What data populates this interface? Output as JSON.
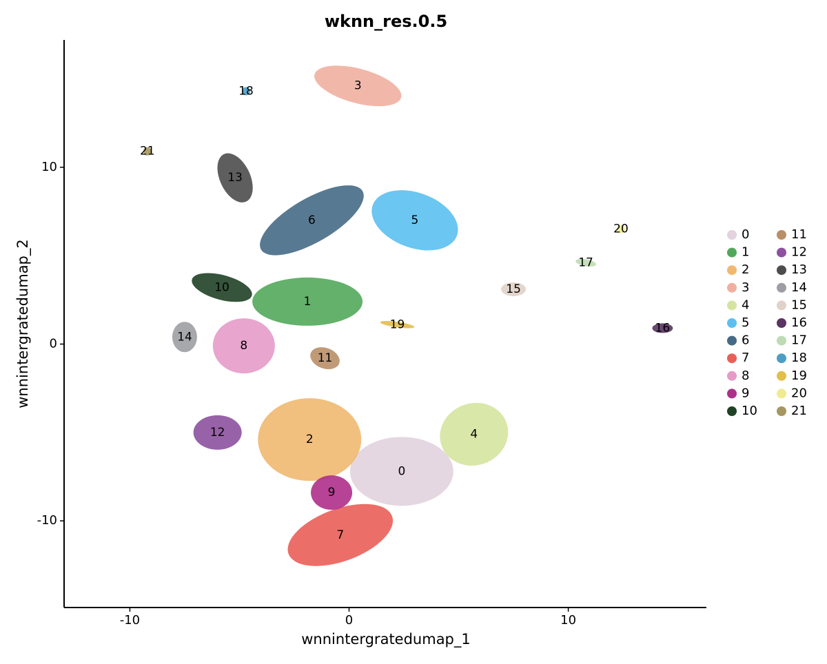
{
  "chart_data": {
    "type": "scatter",
    "title": "wknn_res.0.5",
    "x_label": "wnnintergratedumap_1",
    "y_label": "wnnintergratedumap_2",
    "xlim": [
      -13,
      16.3
    ],
    "ylim": [
      -14.9,
      17.2
    ],
    "xticks": [
      -10,
      0,
      10
    ],
    "yticks": [
      -10,
      0,
      10
    ],
    "legend": "right",
    "series": [
      {
        "name": "0",
        "color": "#e2d3de",
        "x": [
          2.4
        ],
        "y": [
          -7.2
        ]
      },
      {
        "name": "1",
        "color": "#52a85a",
        "x": [
          -1.9
        ],
        "y": [
          2.4
        ]
      },
      {
        "name": "2",
        "color": "#f0b870",
        "x": [
          -1.8
        ],
        "y": [
          -5.4
        ]
      },
      {
        "name": "3",
        "color": "#f0b0a0",
        "x": [
          0.4
        ],
        "y": [
          14.6
        ]
      },
      {
        "name": "4",
        "color": "#d5e4a0",
        "x": [
          5.7
        ],
        "y": [
          -5.1
        ]
      },
      {
        "name": "5",
        "color": "#5bc0f0",
        "x": [
          3.0
        ],
        "y": [
          7.0
        ]
      },
      {
        "name": "6",
        "color": "#466a86",
        "x": [
          -1.7
        ],
        "y": [
          7.0
        ]
      },
      {
        "name": "7",
        "color": "#e95f58",
        "x": [
          -0.4
        ],
        "y": [
          -10.8
        ]
      },
      {
        "name": "8",
        "color": "#e59bc8",
        "x": [
          -4.8
        ],
        "y": [
          -0.1
        ]
      },
      {
        "name": "9",
        "color": "#ae2f89",
        "x": [
          -0.8
        ],
        "y": [
          -8.4
        ]
      },
      {
        "name": "10",
        "color": "#1f4126",
        "x": [
          -5.8
        ],
        "y": [
          3.2
        ]
      },
      {
        "name": "11",
        "color": "#b98f68",
        "x": [
          -1.1
        ],
        "y": [
          -0.8
        ]
      },
      {
        "name": "12",
        "color": "#8d519f",
        "x": [
          -6.0
        ],
        "y": [
          -5.0
        ]
      },
      {
        "name": "13",
        "color": "#4d4d4d",
        "x": [
          -5.2
        ],
        "y": [
          9.4
        ]
      },
      {
        "name": "14",
        "color": "#9d9ea3",
        "x": [
          -7.5
        ],
        "y": [
          0.4
        ]
      },
      {
        "name": "15",
        "color": "#e0d2c8",
        "x": [
          7.5
        ],
        "y": [
          3.1
        ]
      },
      {
        "name": "16",
        "color": "#5a3462",
        "x": [
          14.3
        ],
        "y": [
          0.9
        ]
      },
      {
        "name": "17",
        "color": "#bedbb4",
        "x": [
          10.8
        ],
        "y": [
          4.6
        ]
      },
      {
        "name": "18",
        "color": "#4c9ec4",
        "x": [
          -4.7
        ],
        "y": [
          14.3
        ]
      },
      {
        "name": "19",
        "color": "#e2be4a",
        "x": [
          2.2
        ],
        "y": [
          1.1
        ]
      },
      {
        "name": "20",
        "color": "#f0eb90",
        "x": [
          12.4
        ],
        "y": [
          6.5
        ]
      },
      {
        "name": "21",
        "color": "#a69660",
        "x": [
          -9.2
        ],
        "y": [
          10.9
        ]
      }
    ]
  }
}
